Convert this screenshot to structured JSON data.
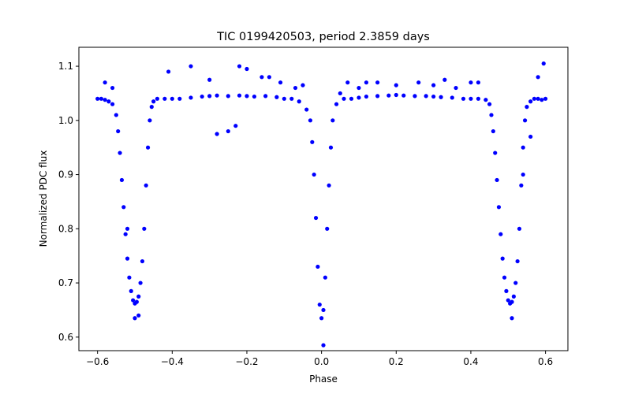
{
  "chart_data": {
    "type": "scatter",
    "title": "TIC 0199420503, period 2.3859 days",
    "xlabel": "Phase",
    "ylabel": "Normalized PDC flux",
    "xlim": [
      -0.65,
      0.66
    ],
    "ylim": [
      0.575,
      1.135
    ],
    "xticks": [
      -0.6,
      -0.4,
      -0.2,
      0.0,
      0.2,
      0.4,
      0.6
    ],
    "xtick_labels": [
      "−0.6",
      "−0.4",
      "−0.2",
      "0.0",
      "0.2",
      "0.4",
      "0.6"
    ],
    "yticks": [
      0.6,
      0.7,
      0.8,
      0.9,
      1.0,
      1.1
    ],
    "ytick_labels": [
      "0.6",
      "0.7",
      "0.8",
      "0.9",
      "1.0",
      "1.1"
    ],
    "grid": false,
    "marker_color": "#0000ff",
    "series": [
      {
        "x": [
          -0.6,
          -0.59,
          -0.58,
          -0.57,
          -0.56,
          -0.55,
          -0.545,
          -0.54,
          -0.535,
          -0.53,
          -0.525,
          -0.52,
          -0.515,
          -0.51,
          -0.505,
          -0.5,
          -0.495,
          -0.49,
          -0.485,
          -0.48,
          -0.475,
          -0.47,
          -0.465,
          -0.46,
          -0.455,
          -0.45,
          -0.44,
          -0.42,
          -0.4,
          -0.38,
          -0.35,
          -0.32,
          -0.3,
          -0.28,
          -0.25,
          -0.22,
          -0.2,
          -0.18,
          -0.15,
          -0.12,
          -0.1,
          -0.08,
          -0.06,
          -0.04,
          -0.03,
          -0.025,
          -0.02,
          -0.015,
          -0.01,
          -0.005,
          0.0,
          0.005,
          0.01,
          0.015,
          0.02,
          0.025,
          0.03,
          0.04,
          0.06,
          0.08,
          0.1,
          0.12,
          0.15,
          0.18,
          0.2,
          0.22,
          0.25,
          0.28,
          0.3,
          0.32,
          0.35,
          0.38,
          0.4,
          0.42,
          0.44,
          0.45,
          0.455,
          0.46,
          0.465,
          0.47,
          0.475,
          0.48,
          0.485,
          0.49,
          0.495,
          0.5,
          0.505,
          0.51,
          0.515,
          0.52,
          0.525,
          0.53,
          0.535,
          0.54,
          0.545,
          0.55,
          0.56,
          0.57,
          0.58,
          0.59,
          0.6,
          -0.41,
          -0.3,
          -0.28,
          -0.25,
          -0.23,
          -0.2,
          -0.16,
          -0.11,
          -0.07,
          -0.05,
          -0.58,
          -0.56,
          -0.5,
          -0.52,
          0.05,
          0.07,
          0.1,
          0.15,
          0.2,
          0.26,
          0.3,
          0.36,
          0.4,
          0.54,
          0.56,
          0.58,
          0.595,
          -0.49,
          0.005,
          0.51,
          -0.35,
          -0.22,
          -0.14,
          0.12,
          0.33,
          0.42
        ],
        "y": [
          1.04,
          1.04,
          1.038,
          1.035,
          1.03,
          1.01,
          0.98,
          0.94,
          0.89,
          0.84,
          0.79,
          0.745,
          0.71,
          0.685,
          0.668,
          0.662,
          0.665,
          0.675,
          0.7,
          0.74,
          0.8,
          0.88,
          0.95,
          1.0,
          1.025,
          1.035,
          1.04,
          1.04,
          1.04,
          1.04,
          1.042,
          1.044,
          1.045,
          1.046,
          1.045,
          1.046,
          1.045,
          1.044,
          1.045,
          1.043,
          1.04,
          1.04,
          1.035,
          1.02,
          1.0,
          0.96,
          0.9,
          0.82,
          0.73,
          0.66,
          0.635,
          0.65,
          0.71,
          0.8,
          0.88,
          0.95,
          1.0,
          1.03,
          1.04,
          1.04,
          1.042,
          1.044,
          1.045,
          1.046,
          1.047,
          1.046,
          1.045,
          1.045,
          1.044,
          1.043,
          1.042,
          1.04,
          1.04,
          1.04,
          1.038,
          1.03,
          1.01,
          0.98,
          0.94,
          0.89,
          0.84,
          0.79,
          0.745,
          0.71,
          0.685,
          0.668,
          0.662,
          0.665,
          0.675,
          0.7,
          0.74,
          0.8,
          0.88,
          0.95,
          1.0,
          1.025,
          1.035,
          1.04,
          1.04,
          1.038,
          1.04,
          1.09,
          1.075,
          0.975,
          0.98,
          0.99,
          1.095,
          1.08,
          1.07,
          1.06,
          1.065,
          1.07,
          1.06,
          0.635,
          0.8,
          1.05,
          1.07,
          1.06,
          1.07,
          1.065,
          1.07,
          1.065,
          1.06,
          1.07,
          0.9,
          0.97,
          1.08,
          1.105,
          0.64,
          0.585,
          0.635,
          1.1,
          1.1,
          1.08,
          1.07,
          1.075,
          1.07
        ]
      }
    ]
  }
}
